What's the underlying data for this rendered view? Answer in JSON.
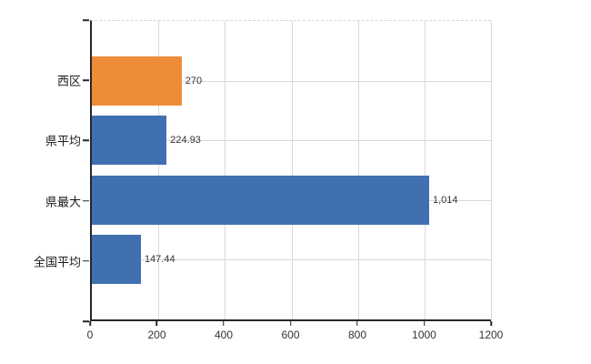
{
  "chart_data": {
    "type": "bar",
    "orientation": "horizontal",
    "title": "",
    "xlabel": "",
    "ylabel": "",
    "categories": [
      "西区",
      "県平均",
      "県最大",
      "全国平均"
    ],
    "values": [
      270,
      224.93,
      1014,
      147.44
    ],
    "value_labels": [
      "270",
      "224.93",
      "1,014",
      "147.44"
    ],
    "bar_colors": [
      "#EE8C38",
      "#4070B0",
      "#4070B0",
      "#4070B0"
    ],
    "xlim": [
      0,
      1200
    ],
    "x_ticks": [
      0,
      200,
      400,
      600,
      800,
      1000,
      1200
    ],
    "x_tick_labels": [
      "0",
      "200",
      "400",
      "600",
      "800",
      "1000",
      "1200"
    ],
    "grid": true,
    "legend": false
  },
  "colors": {
    "background": "#FFFFFF",
    "axis": "#262626",
    "gridline": "#D9D9D9",
    "text": "#333333",
    "highlight_bar": "#EE8C38",
    "default_bar": "#4070B0"
  }
}
